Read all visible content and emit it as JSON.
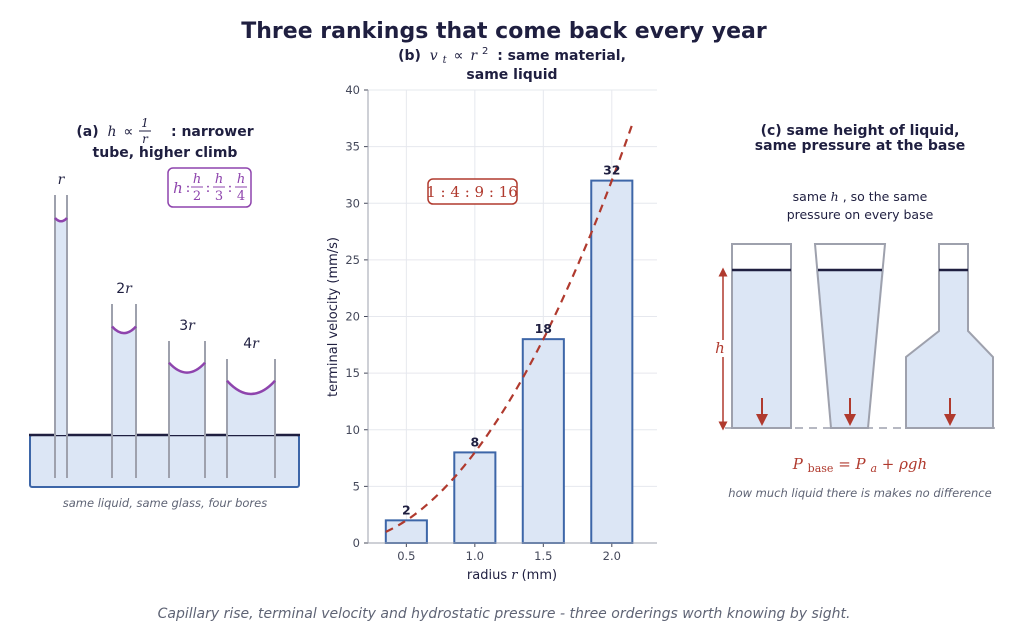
{
  "title": "Three rankings that come back every year",
  "footer": "Capillary rise, terminal velocity and hydrostatic pressure - three orderings worth knowing by sight.",
  "colors": {
    "liquid_fill": "#dce6f5",
    "tube_stroke": "#9ea1ad",
    "meniscus": "#8e44ad",
    "bar_stroke": "#3d66a8",
    "curve": "#b03a2e",
    "dark": "#1f1f40"
  },
  "panel_a": {
    "title_prefix": "(a)",
    "title_formula_h": "h",
    "title_formula_op": "∝",
    "title_formula_num": "1",
    "title_formula_den": "r",
    "title_tail": ": narrower",
    "title_line2": "tube, higher climb",
    "ratio_box": {
      "h": "h",
      "sep": ":",
      "terms": [
        {
          "num": "h",
          "den": "2"
        },
        {
          "num": "h",
          "den": "3"
        },
        {
          "num": "h",
          "den": "4"
        }
      ]
    },
    "tube_labels": [
      "r",
      "2r",
      "3r",
      "4r"
    ],
    "tube_label_parts": [
      {
        "coef": "",
        "var": "r"
      },
      {
        "coef": "2",
        "var": "r"
      },
      {
        "coef": "3",
        "var": "r"
      },
      {
        "coef": "4",
        "var": "r"
      }
    ],
    "relative_heights": [
      1,
      0.5,
      0.3333,
      0.25
    ],
    "caption": "same liquid, same glass, four bores"
  },
  "panel_b": {
    "title_prefix": "(b)",
    "title_formula": "vt ∝ r²",
    "title_v": "v",
    "title_sub": "t",
    "title_op": "∝",
    "title_r": "r",
    "title_sup": "2",
    "title_tail": ": same material,",
    "title_line2": "same liquid",
    "ratio_annotation": "1 : 4 : 9 : 16"
  },
  "chart_data": {
    "type": "bar",
    "categories": [
      "0.5",
      "1.0",
      "1.5",
      "2.0"
    ],
    "x": [
      0.5,
      1.0,
      1.5,
      2.0
    ],
    "values": [
      2,
      8,
      18,
      32
    ],
    "data_labels": [
      "2",
      "8",
      "18",
      "32"
    ],
    "xlabel": "radius r (mm)",
    "xlabel_prefix": "radius ",
    "xlabel_var": "r",
    "xlabel_suffix": " (mm)",
    "ylabel": "terminal velocity (mm/s)",
    "ylim": [
      0,
      40
    ],
    "yticks": [
      0,
      5,
      10,
      15,
      20,
      25,
      30,
      35,
      40
    ],
    "xlim": [
      0.22,
      2.33
    ],
    "grid": true,
    "fit_curve": {
      "type": "quadratic",
      "coefficient": 8,
      "x_range": [
        0.35,
        2.15
      ]
    }
  },
  "panel_c": {
    "title_line1": "(c) same height of liquid,",
    "title_line2": "same pressure at the base",
    "sub_line1_pre": "same ",
    "sub_line1_var": "h",
    "sub_line1_post": ", so the same",
    "sub_line2": "pressure on every base",
    "height_label": "h",
    "formula_p": "P",
    "formula_sub": "base",
    "formula_rest": " = P",
    "formula_a": "a",
    "formula_tail": " + ρgh",
    "caption": "how much liquid there is makes no difference"
  }
}
